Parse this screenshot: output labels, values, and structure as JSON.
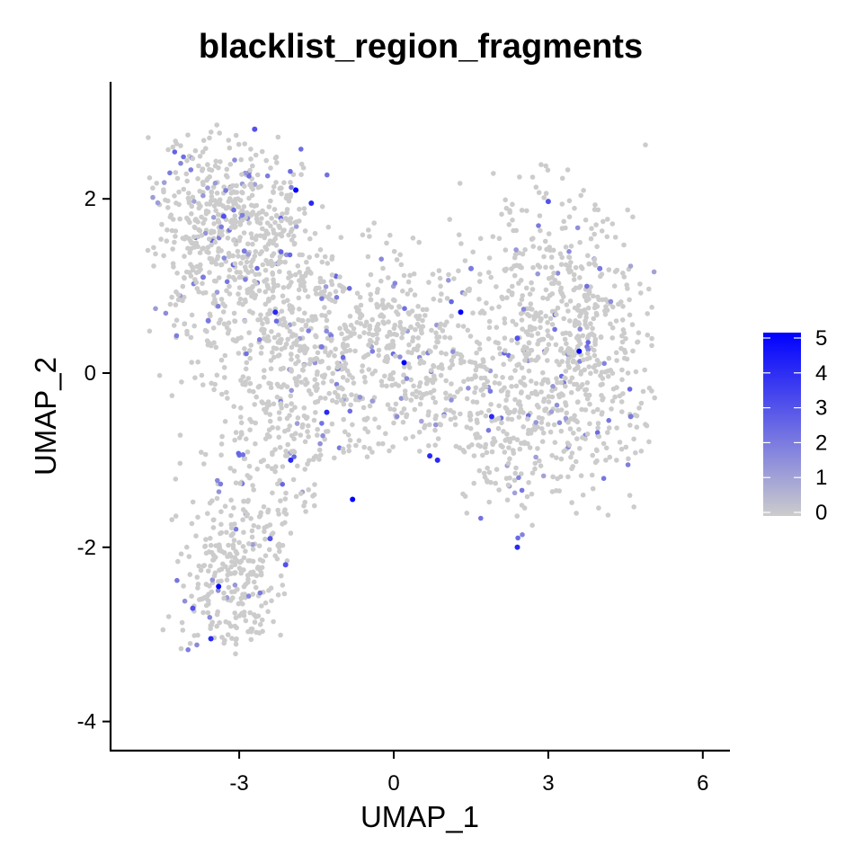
{
  "chart_data": {
    "type": "scatter",
    "title": "blacklist_region_fragments",
    "xlabel": "UMAP_1",
    "ylabel": "UMAP_2",
    "xlim": [
      -5.4,
      6.6
    ],
    "ylim": [
      -4.4,
      3.4
    ],
    "x_ticks": [
      -3,
      0,
      3,
      6
    ],
    "x_tick_labels": [
      "-3",
      "0",
      "3",
      "6"
    ],
    "y_ticks": [
      -4,
      -2,
      0,
      2
    ],
    "y_tick_labels": [
      "-4",
      "-2",
      "0",
      "2"
    ],
    "grid": false,
    "legend": {
      "placement": "right",
      "type": "colorbar",
      "min": 0,
      "max": 5,
      "tick_labels": [
        "0",
        "1",
        "2",
        "3",
        "4",
        "5"
      ],
      "low_color": "#cccccc",
      "high_color": "#0000ff"
    },
    "highlight_points": [
      {
        "x": -1.9,
        "y": 2.1,
        "value": 5
      },
      {
        "x": -1.6,
        "y": 1.95,
        "value": 4
      },
      {
        "x": -2.7,
        "y": 2.8,
        "value": 3
      },
      {
        "x": -3.3,
        "y": 1.8,
        "value": 3
      },
      {
        "x": -2.9,
        "y": 1.4,
        "value": 2
      },
      {
        "x": -3.7,
        "y": 1.1,
        "value": 2
      },
      {
        "x": -2.3,
        "y": 0.7,
        "value": 4
      },
      {
        "x": -3.6,
        "y": 0.6,
        "value": 2
      },
      {
        "x": -1.4,
        "y": 0.3,
        "value": 2
      },
      {
        "x": -1.3,
        "y": -0.45,
        "value": 4
      },
      {
        "x": -2.0,
        "y": -1.0,
        "value": 4
      },
      {
        "x": -0.8,
        "y": -1.45,
        "value": 5
      },
      {
        "x": 0.2,
        "y": 0.12,
        "value": 5
      },
      {
        "x": 1.3,
        "y": 0.7,
        "value": 5
      },
      {
        "x": 0.85,
        "y": -1.0,
        "value": 4
      },
      {
        "x": 0.7,
        "y": -0.95,
        "value": 4
      },
      {
        "x": 1.9,
        "y": -0.5,
        "value": 4
      },
      {
        "x": 2.4,
        "y": -2.0,
        "value": 4
      },
      {
        "x": 3.6,
        "y": 0.25,
        "value": 5
      },
      {
        "x": 2.4,
        "y": 0.4,
        "value": 3
      },
      {
        "x": 4.0,
        "y": 1.2,
        "value": 2
      },
      {
        "x": 4.6,
        "y": -0.5,
        "value": 2
      },
      {
        "x": -3.4,
        "y": -2.45,
        "value": 5
      },
      {
        "x": -3.55,
        "y": -3.05,
        "value": 4
      },
      {
        "x": -2.4,
        "y": -1.9,
        "value": 3
      },
      {
        "x": -3.9,
        "y": -2.7,
        "value": 3
      },
      {
        "x": -2.1,
        "y": -2.2,
        "value": 3
      },
      {
        "x": 1.5,
        "y": 1.2,
        "value": 2
      },
      {
        "x": 3.0,
        "y": 1.97,
        "value": 3
      }
    ]
  }
}
